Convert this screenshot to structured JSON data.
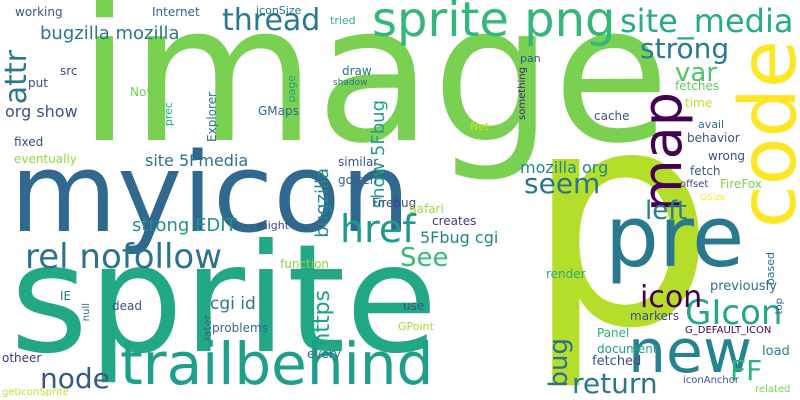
{
  "words": [
    {
      "text": "image",
      "color": "#7ad151",
      "rot": 0
    },
    {
      "text": "p",
      "color": "#b5de2b",
      "rot": 0
    },
    {
      "text": "sprite",
      "color": "#22a884",
      "rot": 0
    },
    {
      "text": "myicon",
      "color": "#31688e",
      "rot": 0
    },
    {
      "text": "pre",
      "color": "#2a788e",
      "rot": 0
    },
    {
      "text": "code",
      "color": "#fde725",
      "rot": -90
    },
    {
      "text": "trailbehind",
      "color": "#1f9e89",
      "rot": 0
    },
    {
      "text": "sprite png",
      "color": "#35b779",
      "rot": 0
    },
    {
      "text": "new",
      "color": "#26828e",
      "rot": 0
    },
    {
      "text": "map",
      "color": "#440154",
      "rot": -90
    },
    {
      "text": "rel nofollow",
      "color": "#2c728e",
      "rot": 0
    },
    {
      "text": "href",
      "color": "#1f9a8a",
      "rot": 0
    },
    {
      "text": "site_media",
      "color": "#27ad81",
      "rot": 0
    },
    {
      "text": "GIcon",
      "color": "#22a884",
      "rot": 0
    },
    {
      "text": "icon",
      "color": "#440154",
      "rot": 0
    },
    {
      "text": "thread",
      "color": "#2a788e",
      "rot": 0
    },
    {
      "text": "strong",
      "color": "#287c8e",
      "rot": 0
    },
    {
      "text": "node",
      "color": "#375a8c",
      "rot": 0
    },
    {
      "text": "return",
      "color": "#2a788e",
      "rot": 0
    },
    {
      "text": "left",
      "color": "#287d8e",
      "rot": 0
    },
    {
      "text": "seem",
      "color": "#2a768e",
      "rot": 0
    },
    {
      "text": "See",
      "color": "#38b977",
      "rot": 0
    },
    {
      "text": "FF",
      "color": "#2db27d",
      "rot": 0
    },
    {
      "text": "attr",
      "color": "#2a788e",
      "rot": -90
    },
    {
      "text": "var",
      "color": "#52c569",
      "rot": 0
    },
    {
      "text": "bug",
      "color": "#2d708e",
      "rot": -90
    },
    {
      "text": "https",
      "color": "#1fa187",
      "rot": -90
    },
    {
      "text": "bugzilla mozilla",
      "color": "#2a788e",
      "rot": 0
    },
    {
      "text": "strong EDIT",
      "color": "#21918c",
      "rot": 0
    },
    {
      "text": "org show",
      "color": "#3b528b",
      "rot": 0
    },
    {
      "text": "site 5Fmedia",
      "color": "#2c718e",
      "rot": 0
    },
    {
      "text": "show 5Fbug",
      "color": "#1f9e89",
      "rot": -90
    },
    {
      "text": "bugzilla",
      "color": "#23898e",
      "rot": -90
    },
    {
      "text": "5Fbug cgi",
      "color": "#25848e",
      "rot": 0
    },
    {
      "text": "mozilla org",
      "color": "#23888e",
      "rot": 0
    },
    {
      "text": "cgi id",
      "color": "#2a788e",
      "rot": 0
    },
    {
      "text": "previously",
      "color": "#2e6e8e",
      "rot": 0
    },
    {
      "text": "fetched",
      "color": "#3e4a89",
      "rot": 0
    },
    {
      "text": "document",
      "color": "#1f9e89",
      "rot": 0
    },
    {
      "text": "Panel",
      "color": "#29af7f",
      "rot": 0
    },
    {
      "text": "load",
      "color": "#25848e",
      "rot": 0
    },
    {
      "text": "working",
      "color": "#38598c",
      "rot": 0
    },
    {
      "text": "Internet",
      "color": "#30678d",
      "rot": 0
    },
    {
      "text": "iconSize",
      "color": "#2d708e",
      "rot": 0
    },
    {
      "text": "tried",
      "color": "#2fb47c",
      "rot": 0
    },
    {
      "text": "put",
      "color": "#3f4889",
      "rot": 0
    },
    {
      "text": "src",
      "color": "#3e4989",
      "rot": 0
    },
    {
      "text": "Now",
      "color": "#73d056",
      "rot": 0
    },
    {
      "text": "fixed",
      "color": "#3d4e8a",
      "rot": 0
    },
    {
      "text": "eventually",
      "color": "#95d840",
      "rot": 0
    },
    {
      "text": "draw",
      "color": "#2c728e",
      "rot": 0
    },
    {
      "text": "shadow",
      "color": "#2d708e",
      "rot": 0
    },
    {
      "text": "page",
      "color": "#20a486",
      "rot": -90
    },
    {
      "text": "prec",
      "color": "#22a884",
      "rot": -90
    },
    {
      "text": "Explorer",
      "color": "#2a778e",
      "rot": -90
    },
    {
      "text": "GMaps",
      "color": "#31678e",
      "rot": 0
    },
    {
      "text": "similar",
      "color": "#3a548c",
      "rot": 0
    },
    {
      "text": "gotten",
      "color": "#35608d",
      "rot": 0
    },
    {
      "text": "Firebug",
      "color": "#404588",
      "rot": 0
    },
    {
      "text": "Safari",
      "color": "#9bd93c",
      "rot": 0
    },
    {
      "text": "creates",
      "color": "#443983",
      "rot": 0
    },
    {
      "text": "might",
      "color": "#3f4788",
      "rot": 0
    },
    {
      "text": "function",
      "color": "#86d549",
      "rot": 0
    },
    {
      "text": "use",
      "color": "#3b528b",
      "rot": 0
    },
    {
      "text": "GPoint",
      "color": "#a5db36",
      "rot": 0
    },
    {
      "text": "every",
      "color": "#2f6b8e",
      "rot": 0
    },
    {
      "text": "later",
      "color": "#2f6c8e",
      "rot": -90
    },
    {
      "text": "problems",
      "color": "#31688e",
      "rot": 0
    },
    {
      "text": "dead",
      "color": "#3b528b",
      "rot": 0
    },
    {
      "text": "IE",
      "color": "#2a778e",
      "rot": 0
    },
    {
      "text": "null",
      "color": "#30678d",
      "rot": -90
    },
    {
      "text": "otheer",
      "color": "#46327e",
      "rot": 0
    },
    {
      "text": "getIconSprite",
      "color": "#c2df23",
      "rot": 0
    },
    {
      "text": "render",
      "color": "#2ab07f",
      "rot": 0
    },
    {
      "text": "based",
      "color": "#2e6f8e",
      "rot": -90
    },
    {
      "text": "markers",
      "color": "#3f4889",
      "rot": 0
    },
    {
      "text": "G_DEFAULT_ICON",
      "color": "#440154",
      "rot": 0
    },
    {
      "text": "top",
      "color": "#365c8d",
      "rot": -90
    },
    {
      "text": "iconAnchor",
      "color": "#3b528b",
      "rot": 0
    },
    {
      "text": "related",
      "color": "#7ad151",
      "rot": 0
    },
    {
      "text": "pan",
      "color": "#39568c",
      "rot": 0
    },
    {
      "text": "something",
      "color": "#482576",
      "rot": -90
    },
    {
      "text": "Net",
      "color": "#cae11f",
      "rot": 0
    },
    {
      "text": "cache",
      "color": "#3b528b",
      "rot": 0
    },
    {
      "text": "fetches",
      "color": "#5ec962",
      "rot": 0
    },
    {
      "text": "time",
      "color": "#c2df23",
      "rot": 0
    },
    {
      "text": "avail",
      "color": "#2d708e",
      "rot": 0
    },
    {
      "text": "behavior",
      "color": "#3b528b",
      "rot": 0
    },
    {
      "text": "wrong",
      "color": "#39568c",
      "rot": 0
    },
    {
      "text": "fetch",
      "color": "#38598c",
      "rot": 0
    },
    {
      "text": "offset",
      "color": "#3e4a89",
      "rot": 0
    },
    {
      "text": "FireFox",
      "color": "#7ad151",
      "rot": 0
    },
    {
      "text": "GSize",
      "color": "#fde725",
      "rot": 0
    }
  ]
}
